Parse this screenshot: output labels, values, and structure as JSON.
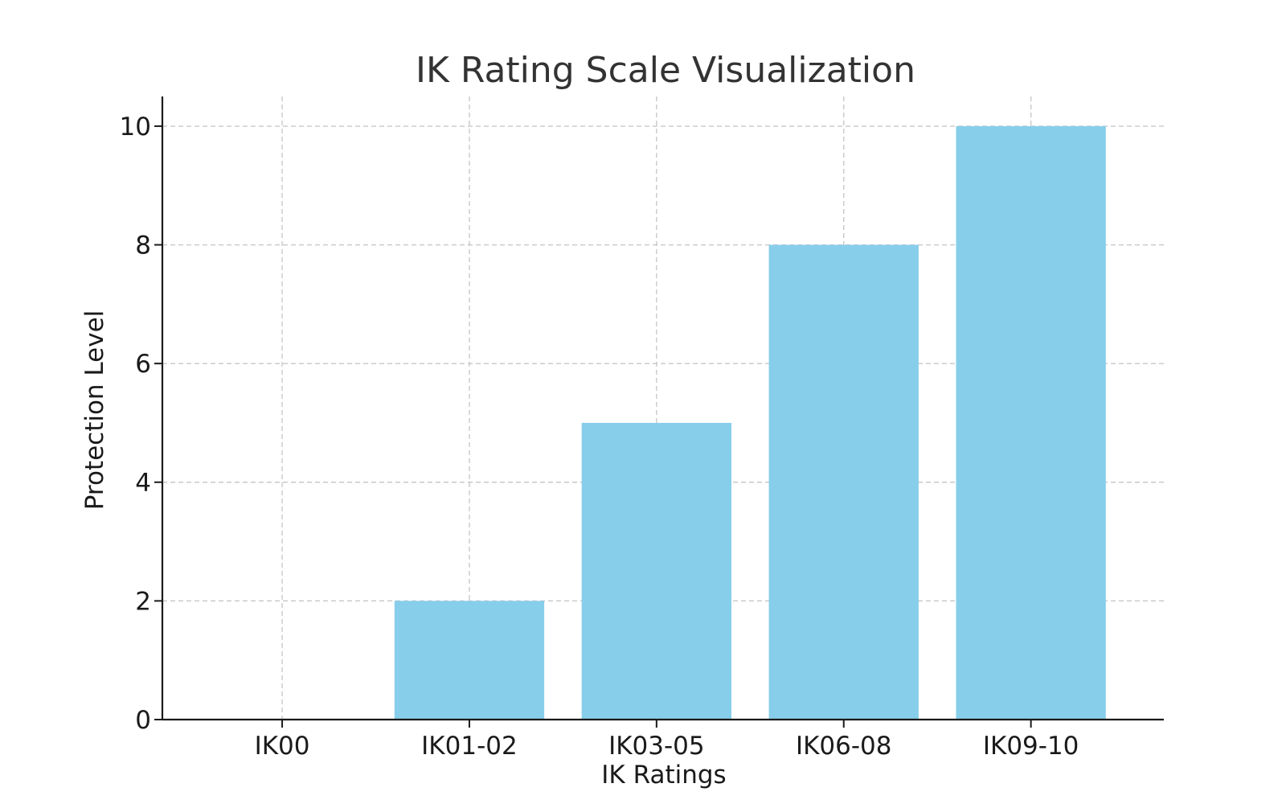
{
  "chart_data": {
    "type": "bar",
    "title": "IK Rating Scale Visualization",
    "xlabel": "IK Ratings",
    "ylabel": "Protection Level",
    "categories": [
      "IK00",
      "IK01-02",
      "IK03-05",
      "IK06-08",
      "IK09-10"
    ],
    "values": [
      0,
      2,
      5,
      8,
      10
    ],
    "ylim": [
      0,
      10.5
    ],
    "yticks": [
      0,
      2,
      4,
      6,
      8,
      10
    ],
    "grid": true,
    "legend": "none",
    "bar_color": "#87CEEB"
  }
}
